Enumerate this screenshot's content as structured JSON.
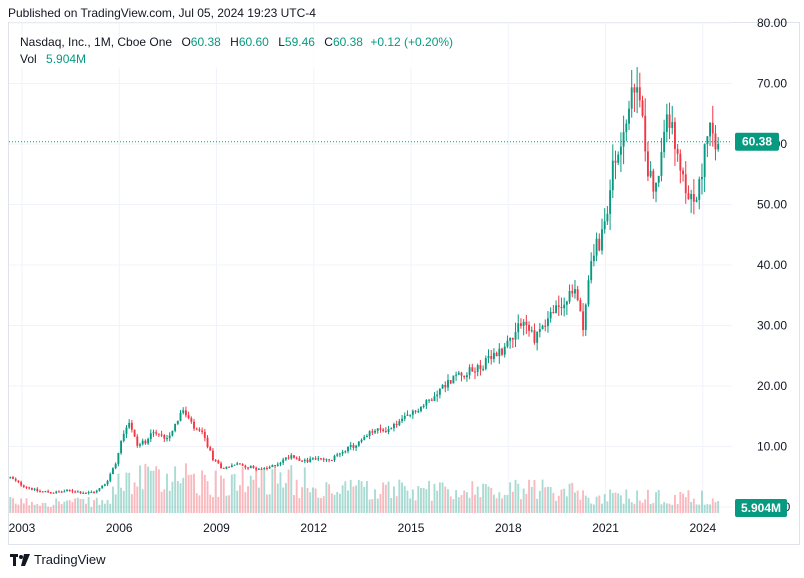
{
  "header": {
    "published": "Published on TradingView.com, Jul 05, 2024 19:23 UTC-4"
  },
  "legend": {
    "symbol": "Nasdaq, Inc., 1M, Cboe One",
    "open_label": "O",
    "open": "60.38",
    "high_label": "H",
    "high": "60.60",
    "low_label": "L",
    "low": "59.46",
    "close_label": "C",
    "close": "60.38",
    "change": "+0.12 (+0.20%)",
    "vol_label": "Vol",
    "vol_value": "5.904M"
  },
  "footer": {
    "brand": "TradingView"
  },
  "colors": {
    "up": "#089981",
    "down": "#f23645",
    "grid": "#f0f3fa",
    "last_price": "#089981"
  },
  "chart_data": {
    "type": "candlestick",
    "interval": "1M",
    "x_range": [
      2002.6,
      2024.9
    ],
    "y_range": [
      -1.0,
      80.0
    ],
    "y_ticks": [
      0,
      10,
      20,
      30,
      40,
      50,
      60,
      70,
      80
    ],
    "y_tick_labels": [
      "0.0000",
      "10.00",
      "20.00",
      "30.00",
      "40.00",
      "50.00",
      "60.00",
      "70.00",
      "80.00"
    ],
    "x_ticks": [
      2003,
      2006,
      2009,
      2012,
      2015,
      2018,
      2021,
      2024
    ],
    "x_tick_labels": [
      "2003",
      "2006",
      "2009",
      "2012",
      "2015",
      "2018",
      "2021",
      "2024"
    ],
    "last_price": 60.38,
    "last_price_label": "60.38",
    "volume_label": "5.904M",
    "grid": true,
    "price_anchors": [
      [
        2002.6,
        5.0
      ],
      [
        2003.0,
        3.6
      ],
      [
        2003.5,
        2.6
      ],
      [
        2004.0,
        2.4
      ],
      [
        2004.5,
        2.7
      ],
      [
        2005.0,
        2.3
      ],
      [
        2005.3,
        2.6
      ],
      [
        2005.6,
        4.0
      ],
      [
        2005.9,
        7.5
      ],
      [
        2006.1,
        12.0
      ],
      [
        2006.3,
        14.2
      ],
      [
        2006.55,
        10.2
      ],
      [
        2006.8,
        10.8
      ],
      [
        2007.0,
        12.6
      ],
      [
        2007.2,
        11.8
      ],
      [
        2007.5,
        11.5
      ],
      [
        2007.8,
        14.5
      ],
      [
        2007.95,
        16.0
      ],
      [
        2008.3,
        13.0
      ],
      [
        2008.6,
        11.8
      ],
      [
        2008.9,
        7.8
      ],
      [
        2009.2,
        6.4
      ],
      [
        2009.6,
        7.1
      ],
      [
        2010.0,
        6.6
      ],
      [
        2010.5,
        6.2
      ],
      [
        2010.9,
        7.2
      ],
      [
        2011.3,
        8.6
      ],
      [
        2011.7,
        7.5
      ],
      [
        2012.0,
        8.0
      ],
      [
        2012.5,
        7.6
      ],
      [
        2012.9,
        9.4
      ],
      [
        2013.3,
        10.2
      ],
      [
        2013.8,
        12.5
      ],
      [
        2014.3,
        12.8
      ],
      [
        2014.9,
        15.0
      ],
      [
        2015.4,
        16.8
      ],
      [
        2015.9,
        19.5
      ],
      [
        2016.4,
        21.8
      ],
      [
        2016.9,
        22.5
      ],
      [
        2017.4,
        24.2
      ],
      [
        2017.9,
        26.5
      ],
      [
        2018.4,
        31.0
      ],
      [
        2018.8,
        28.0
      ],
      [
        2019.3,
        31.8
      ],
      [
        2019.8,
        34.0
      ],
      [
        2020.1,
        36.0
      ],
      [
        2020.3,
        30.0
      ],
      [
        2020.6,
        42.0
      ],
      [
        2020.9,
        44.5
      ],
      [
        2021.2,
        55.0
      ],
      [
        2021.5,
        61.0
      ],
      [
        2021.8,
        67.0
      ],
      [
        2021.95,
        70.0
      ],
      [
        2022.1,
        64.0
      ],
      [
        2022.35,
        55.0
      ],
      [
        2022.6,
        52.5
      ],
      [
        2022.75,
        59.0
      ],
      [
        2022.9,
        66.5
      ],
      [
        2023.05,
        62.0
      ],
      [
        2023.3,
        54.0
      ],
      [
        2023.55,
        52.0
      ],
      [
        2023.8,
        49.5
      ],
      [
        2024.0,
        57.5
      ],
      [
        2024.2,
        62.0
      ],
      [
        2024.35,
        59.0
      ],
      [
        2024.5,
        60.4
      ]
    ]
  }
}
